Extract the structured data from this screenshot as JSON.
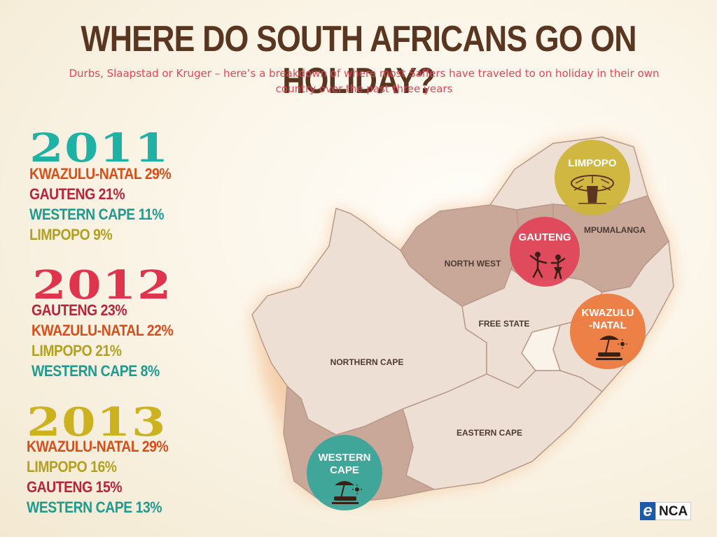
{
  "header": {
    "title": "WHERE DO SOUTH AFRICANS GO ON HOLIDAY?",
    "subtitle_line1": "Durbs, Slaapstad or Kruger – here’s a breakdown of where most Saffers have traveled to on holiday in their own",
    "subtitle_line2": "country over the past three years"
  },
  "years": [
    {
      "year": "2011",
      "color": "#1fb1a4",
      "items": [
        {
          "text": "KWAZULU-NATAL 29%",
          "color": "#d84e1b"
        },
        {
          "text": "GAUTENG 21%",
          "color": "#b8243a"
        },
        {
          "text": "WESTERN CAPE 11%",
          "color": "#1f9a8e"
        },
        {
          "text": "LIMPOPO 9%",
          "color": "#b4a020"
        }
      ]
    },
    {
      "year": "2012",
      "color": "#e0334c",
      "items": [
        {
          "text": "GAUTENG 23%",
          "color": "#b8243a"
        },
        {
          "text": "KWAZULU-NATAL 22%",
          "color": "#d84e1b"
        },
        {
          "text": "LIMPOPO 21%",
          "color": "#b4a020"
        },
        {
          "text": "WESTERN CAPE 8%",
          "color": "#1f9a8e"
        }
      ]
    },
    {
      "year": "2013",
      "color": "#cdb21f",
      "items": [
        {
          "text": "KWAZULU-NATAL 29%",
          "color": "#d84e1b"
        },
        {
          "text": "LIMPOPO 16%",
          "color": "#b4a020"
        },
        {
          "text": "GAUTENG 15%",
          "color": "#b8243a"
        },
        {
          "text": "WESTERN CAPE 13%",
          "color": "#1f9a8e"
        }
      ]
    }
  ],
  "map": {
    "provinces": {
      "northern_cape": "NORTHERN CAPE",
      "north_west": "NORTH WEST",
      "free_state": "FREE STATE",
      "eastern_cape": "EASTERN CAPE",
      "mpumalanga": "MPUMALANGA"
    },
    "highlights": {
      "limpopo": {
        "label": "LIMPOPO",
        "color": "#cdb43a",
        "icon": "baobab-tree-icon"
      },
      "gauteng": {
        "label": "GAUTENG",
        "color": "#e0465a",
        "icon": "dancing-people-icon"
      },
      "kwazulu_natal": {
        "label_line1": "KWAZULU",
        "label_line2": "-NATAL",
        "color": "#ec7a3f",
        "icon": "beach-umbrella-icon"
      },
      "western_cape": {
        "label_line1": "WESTERN",
        "label_line2": "CAPE",
        "color": "#3aa59a",
        "icon": "beach-umbrella-icon"
      }
    }
  },
  "brand": {
    "logo_e": "e",
    "logo_rest": "NCA",
    "logo_color": "#1a5aa8"
  }
}
